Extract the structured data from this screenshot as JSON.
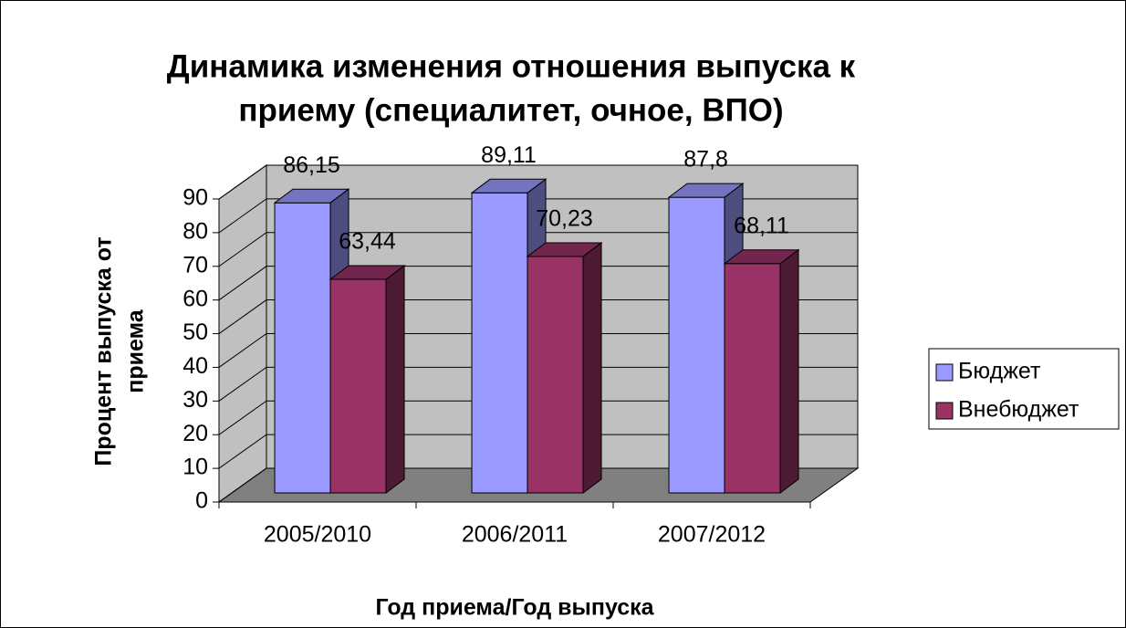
{
  "chart_data": {
    "type": "bar3d",
    "title": [
      "Динамика изменения отношения выпуска к",
      "приему (специалитет, очное, ВПО)"
    ],
    "x_label": "Год приема/Год выпуска",
    "y_label": [
      "Процент выпуска от",
      "приема"
    ],
    "categories": [
      "2005/2010",
      "2006/2011",
      "2007/2012"
    ],
    "series": [
      {
        "name": "Бюджет",
        "color": "#9999ff",
        "values": [
          86.15,
          89.11,
          87.8
        ],
        "value_labels": [
          "86,15",
          "89,11",
          "87,8"
        ]
      },
      {
        "name": "Внебюджет",
        "color": "#993366",
        "values": [
          63.44,
          70.23,
          68.11
        ],
        "value_labels": [
          "63,44",
          "70,23",
          "68,11"
        ]
      }
    ],
    "ylim": [
      0,
      90
    ],
    "yticks": [
      0,
      10,
      20,
      30,
      40,
      50,
      60,
      70,
      80,
      90
    ],
    "grid": true,
    "legend": "right"
  }
}
